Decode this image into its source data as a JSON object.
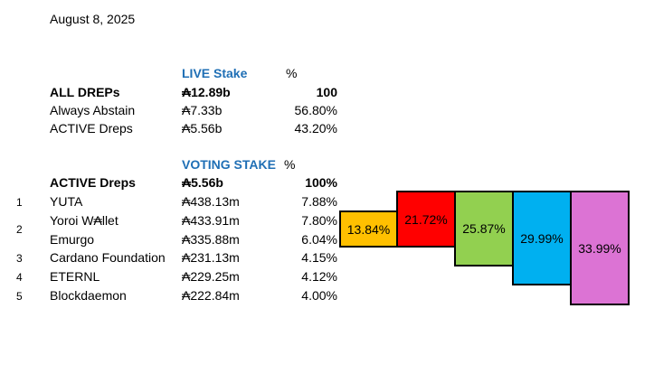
{
  "date": "August 8, 2025",
  "live": {
    "header": "LIVE Stake",
    "pct_header": "%",
    "rows": [
      {
        "label": "ALL DREPs",
        "stake": "₳12.89b",
        "pct": "100"
      },
      {
        "label": "Always Abstain",
        "stake": "₳7.33b",
        "pct": "56.80%"
      },
      {
        "label": "ACTIVE Dreps",
        "stake": "₳5.56b",
        "pct": "43.20%"
      }
    ]
  },
  "voting": {
    "header": "VOTING STAKE",
    "pct_header": "%",
    "total": {
      "label": "ACTIVE Dreps",
      "stake": "₳5.56b",
      "pct": "100%"
    },
    "rows": [
      {
        "rank": "1",
        "label": "YUTA",
        "stake": "₳438.13m",
        "pct": "7.88%"
      },
      {
        "rank": "2",
        "label": "Yoroi W₳llet",
        "stake": "₳433.91m",
        "pct": "7.80%"
      },
      {
        "rank": "",
        "label": "Emurgo",
        "stake": "₳335.88m",
        "pct": "6.04%"
      },
      {
        "rank": "3",
        "label": "Cardano Foundation",
        "stake": "₳231.13m",
        "pct": "4.15%"
      },
      {
        "rank": "4",
        "label": "ETERNL",
        "stake": "₳229.25m",
        "pct": "4.12%"
      },
      {
        "rank": "5",
        "label": "Blockdaemon",
        "stake": "₳222.84m",
        "pct": "4.00%"
      }
    ]
  },
  "cumulative": [
    {
      "label": "13.84%",
      "color": "#ffc000"
    },
    {
      "label": "21.72%",
      "color": "#ff0000"
    },
    {
      "label": "25.87%",
      "color": "#92d050"
    },
    {
      "label": "29.99%",
      "color": "#00b0f0"
    },
    {
      "label": "33.99%",
      "color": "#dc73d4"
    }
  ]
}
